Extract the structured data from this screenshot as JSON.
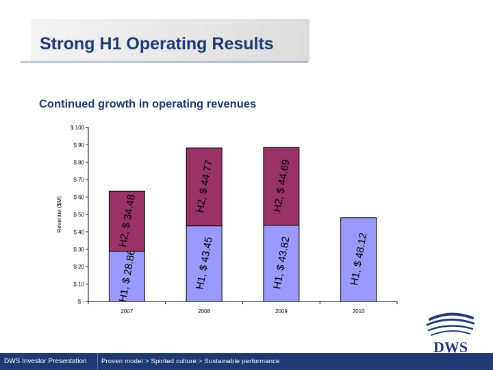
{
  "slide": {
    "title": "Strong H1 Operating Results",
    "subtitle": "Continued growth in operating revenues"
  },
  "footer": {
    "left": "DWS Investor Presentation",
    "center": "Proven model > Spirited culture > Sustainable performance"
  },
  "logo": {
    "text": "DWS"
  },
  "colors": {
    "brand": "#1f3a72",
    "h1_fill": "#9999ff",
    "h2_fill": "#993366"
  },
  "chart_data": {
    "type": "bar",
    "stacked": true,
    "ylabel": "Revenue ($M)",
    "ylim": [
      0,
      100
    ],
    "y_ticks": [
      {
        "value": 0,
        "label": "$ -"
      },
      {
        "value": 10,
        "label": "$ 10"
      },
      {
        "value": 20,
        "label": "$ 20"
      },
      {
        "value": 30,
        "label": "$ 30"
      },
      {
        "value": 40,
        "label": "$ 40"
      },
      {
        "value": 50,
        "label": "$ 50"
      },
      {
        "value": 60,
        "label": "$ 60"
      },
      {
        "value": 70,
        "label": "$ 70"
      },
      {
        "value": 80,
        "label": "$ 80"
      },
      {
        "value": 90,
        "label": "$ 90"
      },
      {
        "value": 100,
        "label": "$ 100"
      }
    ],
    "categories": [
      "2007",
      "2008",
      "2009",
      "2010"
    ],
    "series": [
      {
        "name": "H1",
        "values": [
          28.86,
          43.45,
          43.82,
          48.12
        ],
        "labels": [
          "H1, $ 28.86",
          "H1, $ 43.45",
          "H1, $ 43.82",
          "H1, $ 48.12"
        ]
      },
      {
        "name": "H2",
        "values": [
          34.48,
          44.77,
          44.69,
          null
        ],
        "labels": [
          "H2, $ 34.48",
          "H2, $ 44.77",
          "H2, $ 44.69",
          ""
        ]
      }
    ],
    "grid": false,
    "legend": "none"
  }
}
